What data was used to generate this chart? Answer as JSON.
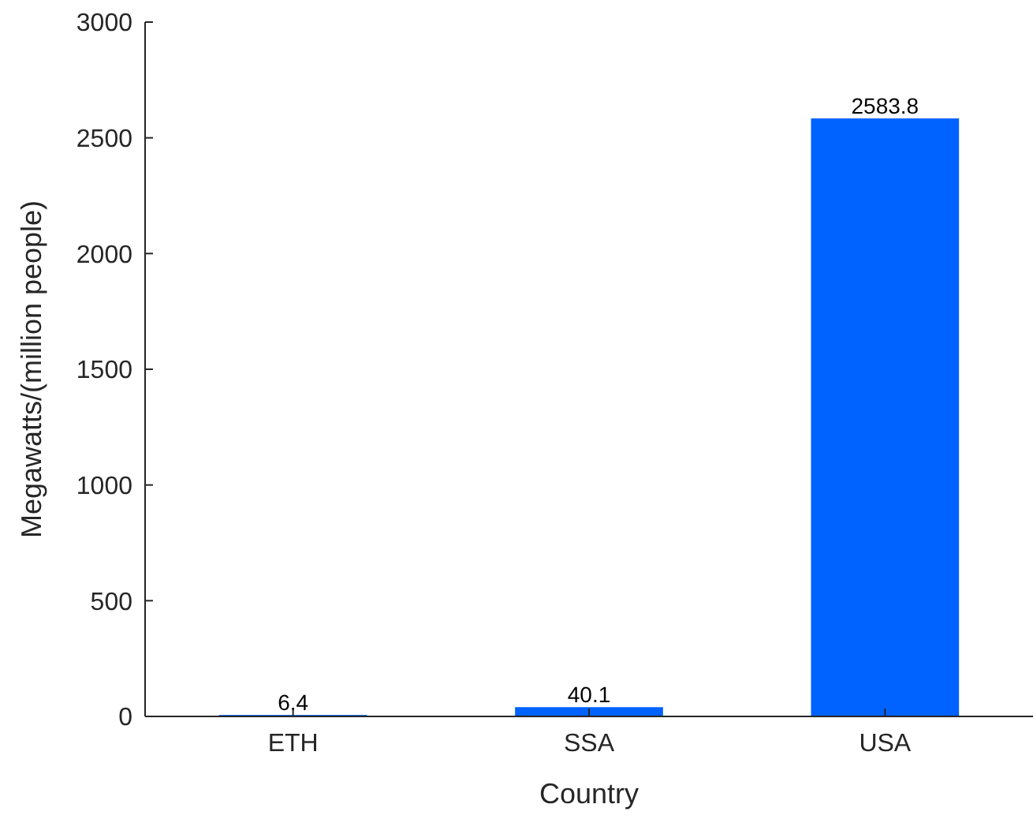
{
  "chart_data": {
    "type": "bar",
    "xlabel": "Country",
    "ylabel": "Megawatts/(million people)",
    "categories": [
      "ETH",
      "SSA",
      "USA"
    ],
    "values": [
      6.4,
      40.1,
      2583.8
    ],
    "color": "#0062ff",
    "ylim": [
      0,
      3000
    ],
    "yticks": [
      0,
      500,
      1000,
      1500,
      2000,
      2500,
      3000
    ],
    "data_labels": true,
    "grid": false
  }
}
